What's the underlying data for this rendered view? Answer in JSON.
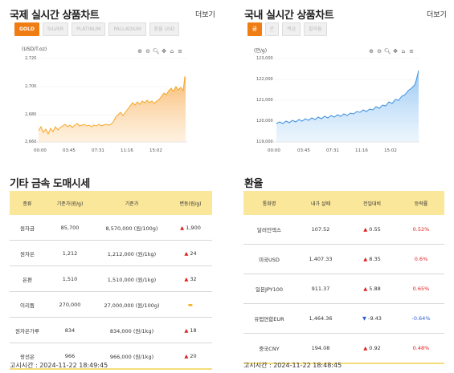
{
  "intl": {
    "title": "국제 실시간 상품차트",
    "more": "더보기",
    "tabs": [
      "GOLD",
      "SILVER",
      "PLATINUM",
      "PALLADIUM",
      "환율 USD"
    ],
    "unit": "(USD/T.oz)",
    "yticks": [
      "2,720",
      "2,700",
      "2,680",
      "2,660"
    ],
    "xticks": [
      "00:00",
      "03:45",
      "07:31",
      "11:16",
      "15:02"
    ]
  },
  "dom": {
    "title": "국내 실시간 상품차트",
    "more": "더보기",
    "tabs": [
      "금",
      "은",
      "백금",
      "팔라듐"
    ],
    "unit": "(만/g)",
    "yticks": [
      "123,000",
      "122,000",
      "121,000",
      "120,000",
      "119,000"
    ],
    "xticks": [
      "00:00",
      "03:45",
      "07:31",
      "11:16",
      "15:02"
    ]
  },
  "metals": {
    "title": "기타 금속 도매시세",
    "headers": [
      "종류",
      "기준가(원/g)",
      "기준가",
      "변동(원/g)"
    ],
    "rows": [
      {
        "name": "원자금",
        "price": "85,700",
        "base": "8,570,000 (원/100g)",
        "change": "1,900",
        "dir": "up"
      },
      {
        "name": "원자은",
        "price": "1,212",
        "base": "1,212,000 (원/1kg)",
        "change": "24",
        "dir": "up"
      },
      {
        "name": "은편",
        "price": "1,510",
        "base": "1,510,000 (원/1kg)",
        "change": "32",
        "dir": "up"
      },
      {
        "name": "이리듐",
        "price": "270,000",
        "base": "27,000,000 (원/100g)",
        "change": "",
        "dir": "flat"
      },
      {
        "name": "원자은가루",
        "price": "834",
        "base": "834,000 (원/1kg)",
        "change": "18",
        "dir": "up"
      },
      {
        "name": "왕선은",
        "price": "966",
        "base": "966,000 (원/1kg)",
        "change": "20",
        "dir": "up"
      }
    ],
    "time": "고시시간 : 2024-11-22 18:49:45"
  },
  "fx": {
    "title": "환율",
    "headers": [
      "통화명",
      "내가 살때",
      "전일대비",
      "등락률"
    ],
    "rows": [
      {
        "name": "달러인덱스",
        "price": "107.52",
        "change": "0.55",
        "rate": "0.52%",
        "dir": "up"
      },
      {
        "name": "미국USD",
        "price": "1,407.33",
        "change": "8.35",
        "rate": "0.6%",
        "dir": "up"
      },
      {
        "name": "일본JPY100",
        "price": "911.37",
        "change": "5.88",
        "rate": "0.65%",
        "dir": "up"
      },
      {
        "name": "유럽연합EUR",
        "price": "1,464.36",
        "change": "-9.43",
        "rate": "-0.64%",
        "dir": "down"
      },
      {
        "name": "중국CNY",
        "price": "194.08",
        "change": "0.92",
        "rate": "0.48%",
        "dir": "up"
      }
    ],
    "time": "고시시간 : 2024-11-22 18:48:45"
  },
  "colors": {
    "accent": "#f07d14",
    "gold_line": "#f6a623",
    "blue_line": "#3d8fe0",
    "table_header": "#fbe79a",
    "panel_bg": "#fdf7e3"
  }
}
